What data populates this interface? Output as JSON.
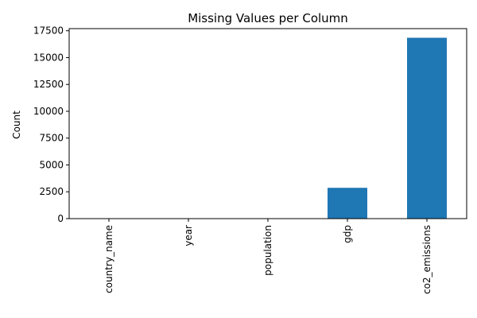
{
  "chart_data": {
    "type": "bar",
    "title": "Missing Values per Column",
    "xlabel": "",
    "ylabel": "Count",
    "categories": [
      "country_name",
      "year",
      "population",
      "gdp",
      "co2_emissions"
    ],
    "values": [
      0,
      0,
      0,
      2870,
      16850
    ],
    "ylim": [
      0,
      17700
    ],
    "yticks": [
      0,
      2500,
      5000,
      7500,
      10000,
      12500,
      15000,
      17500
    ],
    "ytick_labels": [
      "0",
      "2500",
      "5000",
      "7500",
      "10000",
      "12500",
      "15000",
      "17500"
    ],
    "bar_color": "#1f77b4",
    "grid": false,
    "legend": "none"
  }
}
